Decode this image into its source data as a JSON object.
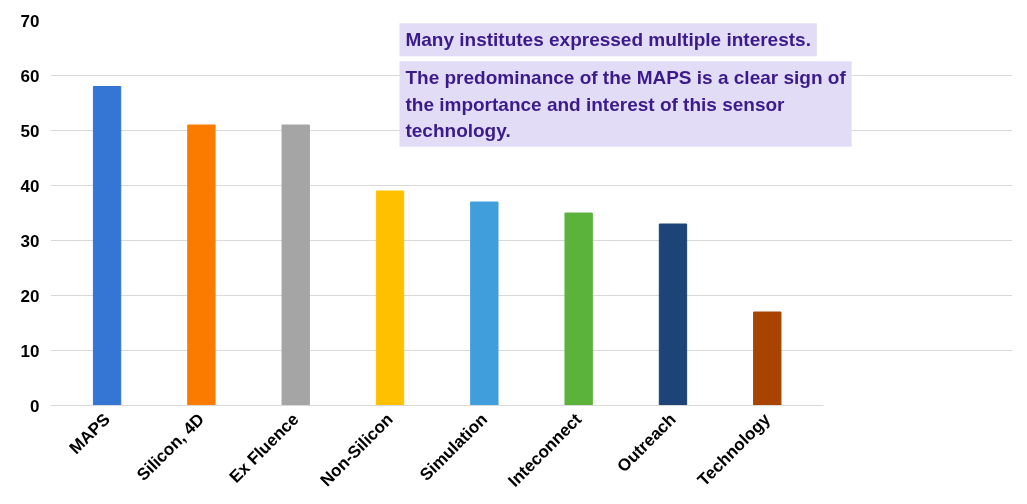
{
  "chart_data": {
    "type": "bar",
    "categories": [
      "MAPS",
      "Silicon, 4D",
      "Ex Fluence",
      "Non-Silicon",
      "Simulation",
      "Inteconnect",
      "Outreach",
      "Technology"
    ],
    "values": [
      58,
      51,
      51,
      39,
      37,
      35,
      33,
      17
    ],
    "colors": [
      "#3575d3",
      "#fb7a00",
      "#a5a5a5",
      "#ffc000",
      "#409edc",
      "#5bb33c",
      "#1d4479",
      "#a84400"
    ],
    "ylim": [
      0,
      70
    ],
    "yticks": [
      0,
      10,
      20,
      30,
      40,
      50,
      60,
      70
    ],
    "grid": "y",
    "annotations": [
      "Many institutes expressed multiple interests.",
      "The predominance of the MAPS is a clear sign of the importance and interest of this sensor technology."
    ]
  }
}
